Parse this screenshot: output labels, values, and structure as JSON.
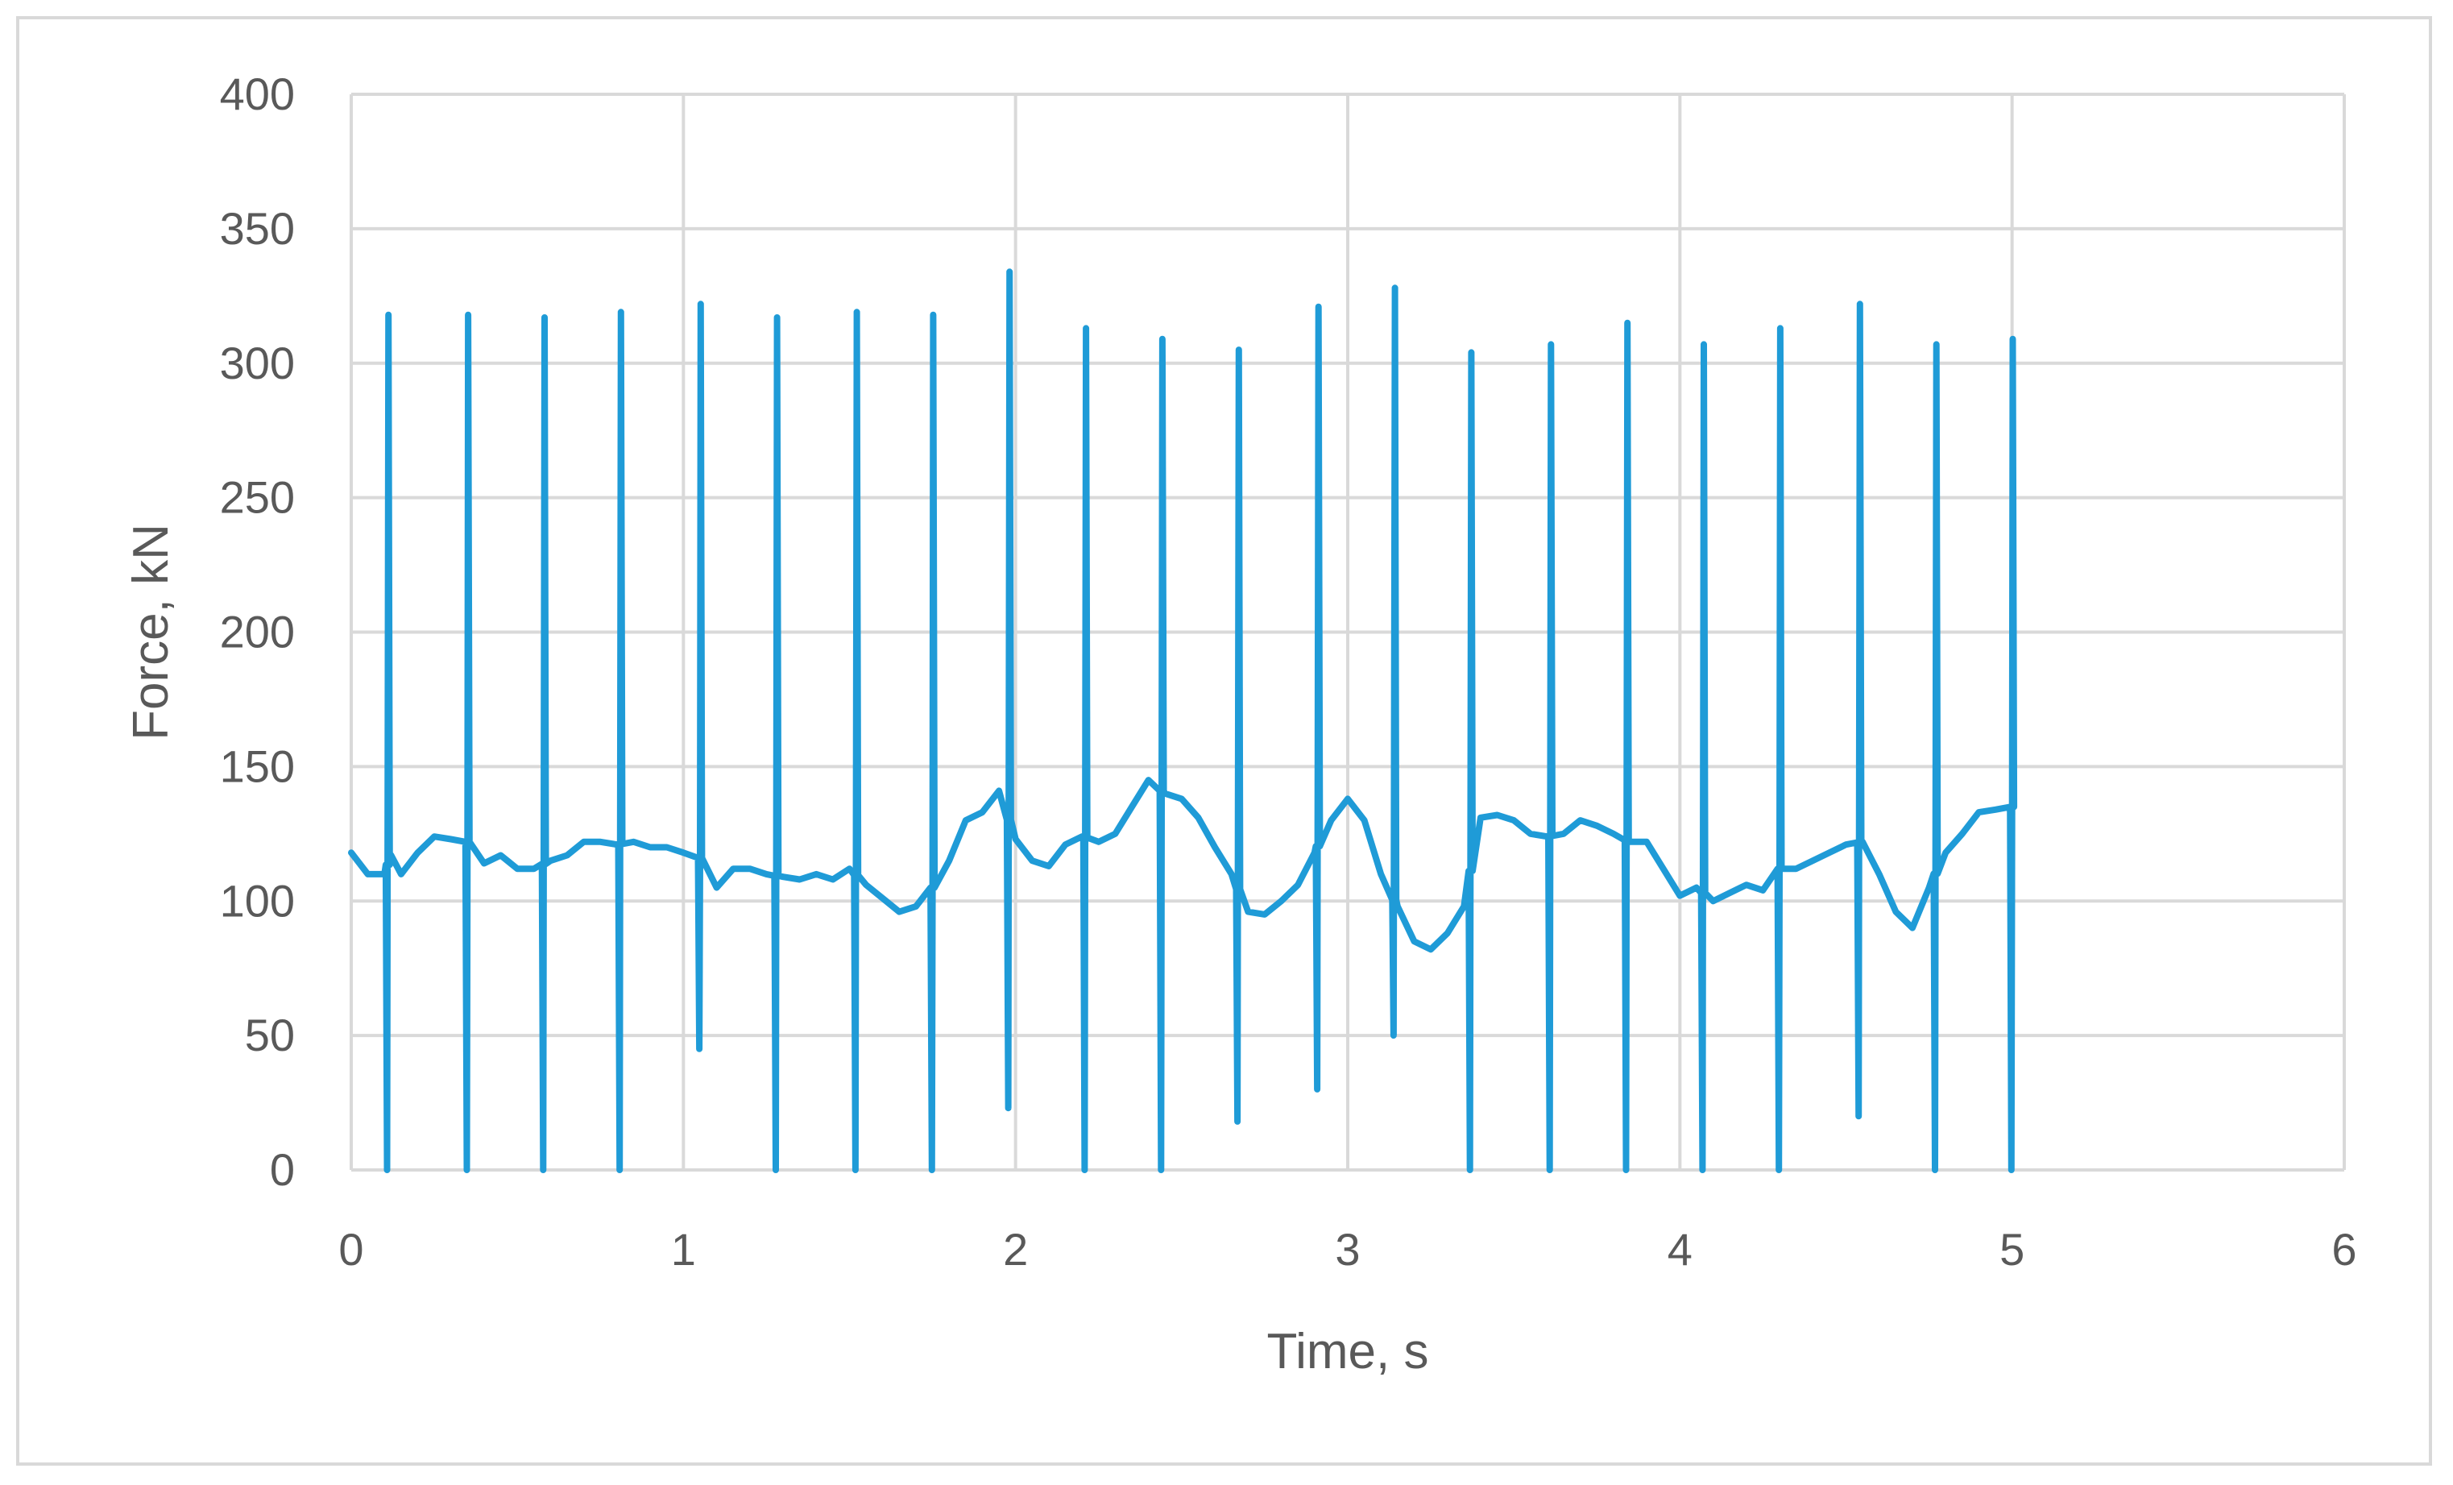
{
  "chart_data": {
    "type": "line",
    "xlabel": "Time, s",
    "ylabel": "Force, kN",
    "xlim": [
      0,
      6
    ],
    "ylim": [
      0,
      400
    ],
    "xticks": [
      0,
      1,
      2,
      3,
      4,
      5,
      6
    ],
    "yticks": [
      0,
      50,
      100,
      150,
      200,
      250,
      300,
      350,
      400
    ],
    "grid": true,
    "legend": "none",
    "series_color": "#1f9bd7",
    "baseline": [
      [
        0.0,
        118
      ],
      [
        0.05,
        110
      ],
      [
        0.1,
        110
      ],
      [
        0.12,
        117
      ],
      [
        0.15,
        110
      ],
      [
        0.2,
        118
      ],
      [
        0.25,
        124
      ],
      [
        0.3,
        123
      ],
      [
        0.35,
        122
      ],
      [
        0.4,
        114
      ],
      [
        0.45,
        117
      ],
      [
        0.5,
        112
      ],
      [
        0.55,
        112
      ],
      [
        0.6,
        115
      ],
      [
        0.65,
        117
      ],
      [
        0.7,
        122
      ],
      [
        0.75,
        122
      ],
      [
        0.8,
        121
      ],
      [
        0.85,
        122
      ],
      [
        0.9,
        120
      ],
      [
        0.95,
        120
      ],
      [
        1.0,
        118
      ],
      [
        1.05,
        116
      ],
      [
        1.1,
        105
      ],
      [
        1.15,
        112
      ],
      [
        1.2,
        112
      ],
      [
        1.25,
        110
      ],
      [
        1.3,
        109
      ],
      [
        1.35,
        108
      ],
      [
        1.4,
        110
      ],
      [
        1.45,
        108
      ],
      [
        1.5,
        112
      ],
      [
        1.55,
        106
      ],
      [
        1.6,
        101
      ],
      [
        1.65,
        96
      ],
      [
        1.7,
        98
      ],
      [
        1.75,
        105
      ],
      [
        1.8,
        115
      ],
      [
        1.85,
        130
      ],
      [
        1.9,
        133
      ],
      [
        1.95,
        141
      ],
      [
        2.0,
        123
      ],
      [
        2.05,
        115
      ],
      [
        2.1,
        113
      ],
      [
        2.15,
        121
      ],
      [
        2.2,
        124
      ],
      [
        2.25,
        122
      ],
      [
        2.3,
        125
      ],
      [
        2.35,
        135
      ],
      [
        2.4,
        145
      ],
      [
        2.45,
        140
      ],
      [
        2.5,
        138
      ],
      [
        2.55,
        131
      ],
      [
        2.6,
        120
      ],
      [
        2.65,
        110
      ],
      [
        2.7,
        96
      ],
      [
        2.75,
        95
      ],
      [
        2.8,
        100
      ],
      [
        2.85,
        106
      ],
      [
        2.9,
        118
      ],
      [
        2.95,
        130
      ],
      [
        3.0,
        138
      ],
      [
        3.05,
        130
      ],
      [
        3.1,
        110
      ],
      [
        3.15,
        98
      ],
      [
        3.2,
        85
      ],
      [
        3.25,
        82
      ],
      [
        3.3,
        88
      ],
      [
        3.35,
        98
      ],
      [
        3.4,
        131
      ],
      [
        3.45,
        132
      ],
      [
        3.5,
        130
      ],
      [
        3.55,
        125
      ],
      [
        3.6,
        124
      ],
      [
        3.65,
        125
      ],
      [
        3.7,
        130
      ],
      [
        3.75,
        128
      ],
      [
        3.8,
        125
      ],
      [
        3.85,
        122
      ],
      [
        3.9,
        122
      ],
      [
        3.95,
        112
      ],
      [
        4.0,
        102
      ],
      [
        4.05,
        105
      ],
      [
        4.1,
        100
      ],
      [
        4.15,
        103
      ],
      [
        4.2,
        106
      ],
      [
        4.25,
        104
      ],
      [
        4.3,
        112
      ],
      [
        4.35,
        112
      ],
      [
        4.4,
        115
      ],
      [
        4.45,
        118
      ],
      [
        4.5,
        121
      ],
      [
        4.55,
        122
      ],
      [
        4.6,
        110
      ],
      [
        4.65,
        96
      ],
      [
        4.7,
        90
      ],
      [
        4.75,
        105
      ],
      [
        4.8,
        118
      ],
      [
        4.85,
        125
      ],
      [
        4.9,
        133
      ],
      [
        4.95,
        134
      ],
      [
        5.0,
        135
      ]
    ],
    "spikes": [
      {
        "t": 0.11,
        "peak": 318,
        "low": 0
      },
      {
        "t": 0.35,
        "peak": 318,
        "low": 0
      },
      {
        "t": 0.58,
        "peak": 317,
        "low": 0
      },
      {
        "t": 0.81,
        "peak": 319,
        "low": 0
      },
      {
        "t": 1.05,
        "peak": 322,
        "low": 45
      },
      {
        "t": 1.28,
        "peak": 317,
        "low": 0
      },
      {
        "t": 1.52,
        "peak": 319,
        "low": 0
      },
      {
        "t": 1.75,
        "peak": 318,
        "low": 0
      },
      {
        "t": 1.98,
        "peak": 334,
        "low": 23
      },
      {
        "t": 2.21,
        "peak": 313,
        "low": 0
      },
      {
        "t": 2.44,
        "peak": 309,
        "low": 0
      },
      {
        "t": 2.67,
        "peak": 305,
        "low": 18
      },
      {
        "t": 2.91,
        "peak": 321,
        "low": 30
      },
      {
        "t": 3.14,
        "peak": 328,
        "low": 50
      },
      {
        "t": 3.37,
        "peak": 304,
        "low": 0
      },
      {
        "t": 3.61,
        "peak": 307,
        "low": 0
      },
      {
        "t": 3.84,
        "peak": 315,
        "low": 0
      },
      {
        "t": 4.07,
        "peak": 307,
        "low": 0
      },
      {
        "t": 4.3,
        "peak": 313,
        "low": 0
      },
      {
        "t": 4.54,
        "peak": 322,
        "low": 20
      },
      {
        "t": 4.77,
        "peak": 307,
        "low": 0
      },
      {
        "t": 5.0,
        "peak": 309,
        "low": 0
      }
    ]
  }
}
